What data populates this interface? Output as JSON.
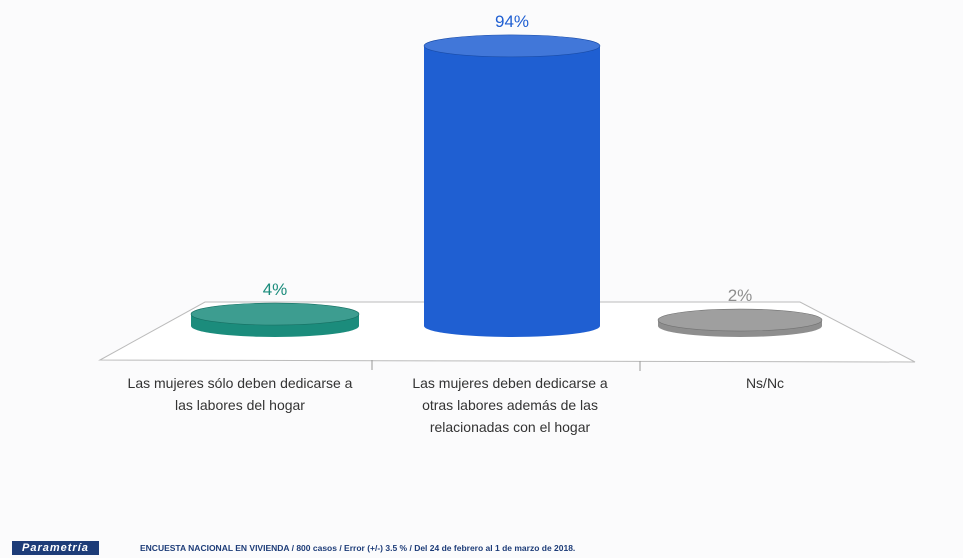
{
  "chart_data": {
    "type": "bar",
    "categories": [
      "Las mujeres sólo deben dedicarse a las labores del hogar",
      "Las mujeres deben dedicarse a otras labores además de las relacionadas con el hogar",
      "Ns/Nc"
    ],
    "values": [
      4,
      94,
      2
    ],
    "value_labels": [
      "4%",
      "94%",
      "2%"
    ],
    "colors": [
      "#1b8c7c",
      "#1f5fd2",
      "#8e8e8e"
    ]
  },
  "footer": {
    "logo": "Parametría",
    "source": "ENCUESTA NACIONAL EN VIVIENDA / 800 casos / Error (+/-) 3.5 % / Del 24 de febrero al 1 de marzo de 2018."
  }
}
